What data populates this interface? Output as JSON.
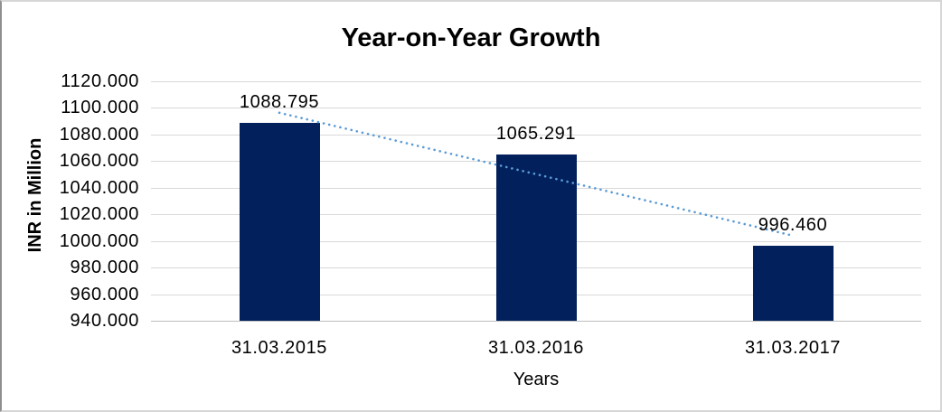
{
  "chart_data": {
    "type": "bar",
    "title": "Year-on-Year Growth",
    "xlabel": "Years",
    "ylabel": "INR in Million",
    "categories": [
      "31.03.2015",
      "31.03.2016",
      "31.03.2017"
    ],
    "values": [
      1088.795,
      1065.291,
      996.46
    ],
    "value_labels": [
      "1088.795",
      "1065.291",
      "996.460"
    ],
    "yticks": [
      "1120.000",
      "1100.000",
      "1080.000",
      "1060.000",
      "1040.000",
      "1020.000",
      "1000.000",
      "980.000",
      "960.000",
      "940.000"
    ],
    "ylim": [
      940,
      1120
    ],
    "ytick_step": 20,
    "grid": true,
    "legend": "none",
    "bar_color": "#02215C",
    "gridline_color": "#D9D9D9",
    "axis_line_color": "#BFBFBF",
    "trendline": {
      "type": "linear",
      "style": "dotted",
      "color": "#5B9BD5"
    }
  }
}
